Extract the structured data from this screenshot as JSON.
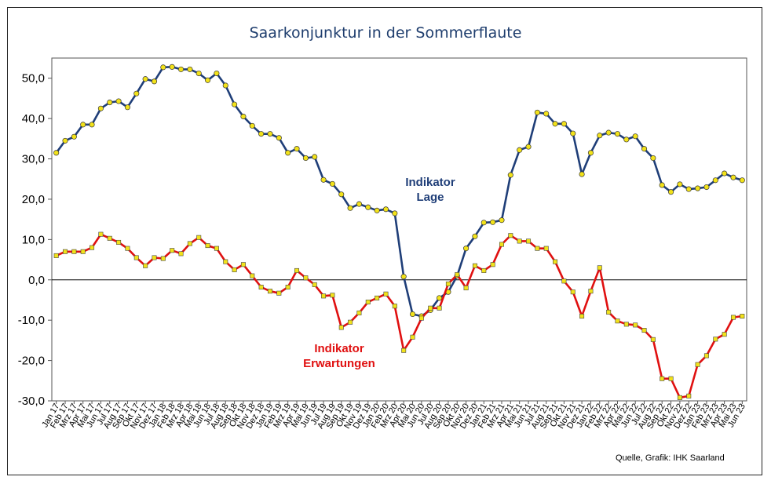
{
  "chart_data": {
    "type": "line",
    "title": "Saarkonjunktur in der Sommerflaute",
    "source": "Quelle, Grafik: IHK Saarland",
    "ylim": [
      -30,
      55
    ],
    "yticks": [
      "-30,0",
      "-20,0",
      "-10,0",
      "0,0",
      "10,0",
      "20,0",
      "30,0",
      "40,0",
      "50,0"
    ],
    "ytick_values": [
      -30,
      -20,
      -10,
      0,
      10,
      20,
      30,
      40,
      50
    ],
    "grid": false,
    "x": [
      "Jan 17",
      "Feb 17",
      "Mrz 17",
      "Apr 17",
      "Mai 17",
      "Jun 17",
      "Jul 17",
      "Aug 17",
      "Sep 17",
      "Okt 17",
      "Nov 17",
      "Dez 17",
      "Jan 18",
      "Feb 18",
      "Mrz 18",
      "Apr 18",
      "Mai 18",
      "Jun 18",
      "Jul 18",
      "Aug 18",
      "Sep 18",
      "Okt 18",
      "Nov 18",
      "Dez 18",
      "Jan 19",
      "Feb 19",
      "Mrz 19",
      "Apr 19",
      "Mai 19",
      "Jun 19",
      "Jul 19",
      "Aug 19",
      "Sep 19",
      "Okt 19",
      "Nov 19",
      "Dez 19",
      "Jan 20",
      "Feb 20",
      "Mrz 20",
      "Apr 20",
      "Mai 20",
      "Jun 20",
      "Jul 20",
      "Aug 20",
      "Sep 20",
      "Okt 20",
      "Nov 20",
      "Dez 20",
      "Jan 21",
      "Feb 21",
      "Mrz 21",
      "Apr 21",
      "Mai 21",
      "Jun 21",
      "Jul 21",
      "Aug 21",
      "Sep 21",
      "Okt 21",
      "Nov 21",
      "Dez 21",
      "Jan 22",
      "Feb 22",
      "Mrz 22",
      "Apr 22",
      "Mai 22",
      "Jun 22",
      "Jul 22",
      "Aug 22",
      "Sep 22",
      "Okt 22",
      "Nov 22",
      "Dez 22",
      "Jan 23",
      "Feb 23",
      "Mrz 23",
      "Apr 23",
      "Mai 23",
      "Jun 23"
    ],
    "series": [
      {
        "name": "Indikator Lage",
        "label_lines": [
          "Indikator",
          "Lage"
        ],
        "color": "#1f3e78",
        "marker_color": "#f2e21a",
        "marker": "circle",
        "values": [
          31.5,
          34.5,
          35.5,
          38.5,
          38.5,
          42.5,
          44.0,
          44.3,
          42.8,
          46.2,
          49.8,
          49.2,
          52.7,
          52.8,
          52.2,
          52.2,
          51.2,
          49.5,
          51.2,
          48.2,
          43.5,
          40.5,
          38.2,
          36.2,
          36.2,
          35.2,
          31.5,
          32.5,
          30.2,
          30.5,
          24.8,
          23.8,
          21.2,
          17.8,
          18.8,
          18.0,
          17.2,
          17.5,
          16.5,
          0.8,
          -8.5,
          -9.0,
          -7.5,
          -4.5,
          -3.0,
          1.0,
          7.8,
          10.8,
          14.2,
          14.3,
          14.8,
          26.0,
          32.2,
          33.0,
          41.5,
          41.2,
          38.7,
          38.7,
          36.3,
          26.2,
          31.5,
          35.8,
          36.5,
          36.2,
          34.8,
          35.6,
          32.5,
          30.2,
          23.5,
          21.8,
          23.7,
          22.5,
          22.7,
          23.0,
          24.7,
          26.4,
          25.4,
          24.7
        ]
      },
      {
        "name": "Indikator Erwartungen",
        "label_lines": [
          "Indikator",
          "Erwartungen"
        ],
        "color": "#e01010",
        "marker_color": "#f2e21a",
        "marker": "square",
        "values": [
          6.0,
          7.0,
          7.0,
          7.0,
          8.0,
          11.3,
          10.3,
          9.3,
          7.8,
          5.5,
          3.5,
          5.5,
          5.3,
          7.3,
          6.5,
          9.0,
          10.5,
          8.5,
          7.8,
          4.5,
          2.5,
          3.8,
          1.0,
          -1.8,
          -2.8,
          -3.3,
          -1.8,
          2.3,
          0.5,
          -1.2,
          -4.0,
          -3.8,
          -11.8,
          -10.5,
          -8.2,
          -5.5,
          -4.5,
          -3.5,
          -6.5,
          -17.5,
          -14.2,
          -9.5,
          -7.0,
          -7.0,
          -1.0,
          1.3,
          -2.0,
          3.5,
          2.3,
          3.8,
          8.8,
          11.0,
          9.6,
          9.6,
          7.8,
          7.8,
          4.5,
          -0.3,
          -3.0,
          -9.0,
          -2.8,
          3.0,
          -8.0,
          -10.2,
          -11.0,
          -11.2,
          -12.5,
          -14.8,
          -24.5,
          -24.5,
          -29.2,
          -28.8,
          -21.0,
          -18.8,
          -14.7,
          -13.5,
          -9.3,
          -9.0
        ]
      }
    ]
  }
}
